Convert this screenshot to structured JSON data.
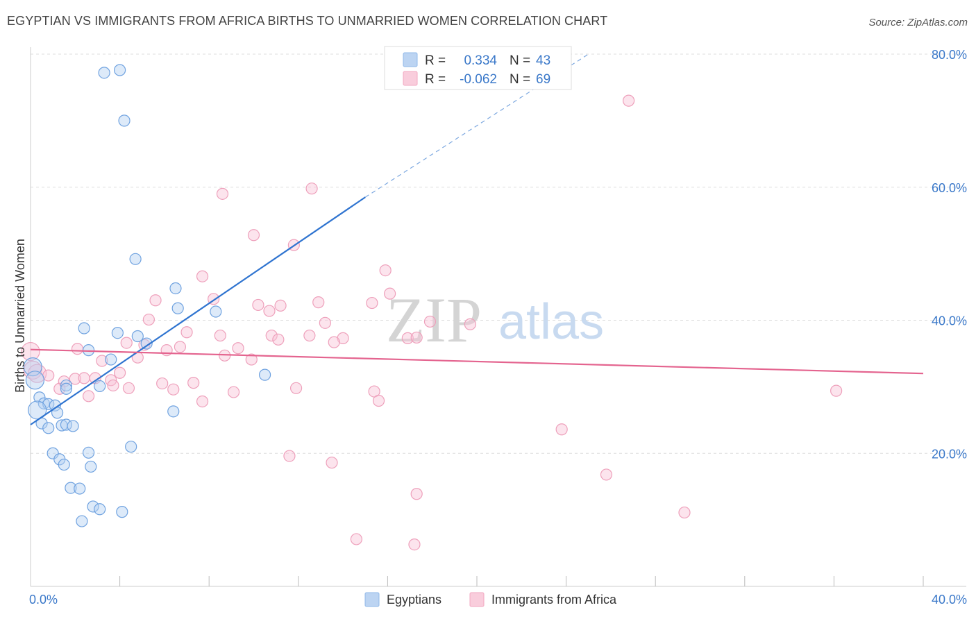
{
  "title": "EGYPTIAN VS IMMIGRANTS FROM AFRICA BIRTHS TO UNMARRIED WOMEN CORRELATION CHART",
  "source": "Source: ZipAtlas.com",
  "watermark": {
    "zip": "ZIP",
    "atlas": "atlas"
  },
  "colors": {
    "blue": "#8fb8e8",
    "blue_line": "#2f74d0",
    "pink": "#f2a7c0",
    "pink_line": "#e4648f"
  },
  "legend_box": {
    "rows": [
      {
        "r_label": "R =",
        "r_value": "0.334",
        "n_label": "N =",
        "n_value": "43"
      },
      {
        "r_label": "R =",
        "r_value": "-0.062",
        "n_label": "N =",
        "n_value": "69"
      }
    ]
  },
  "chart_data": {
    "type": "scatter",
    "title": "EGYPTIAN VS IMMIGRANTS FROM AFRICA BIRTHS TO UNMARRIED WOMEN CORRELATION CHART",
    "xlabel": "",
    "ylabel": "Births to Unmarried Women",
    "xlim": [
      0,
      40
    ],
    "ylim": [
      0,
      80
    ],
    "x_tick_labels": [
      "0.0%",
      "40.0%"
    ],
    "y_ticks": [
      20,
      40,
      60,
      80
    ],
    "y_tick_labels": [
      "20.0%",
      "40.0%",
      "60.0%",
      "80.0%"
    ],
    "legend": [
      "Egyptians",
      "Immigrants from Africa"
    ],
    "series": [
      {
        "name": "Egyptians",
        "r": 0.334,
        "n": 43,
        "trend": {
          "x0": 0,
          "y0": 24.3,
          "x1": 15,
          "y1": 58.5,
          "dash_x1": 25,
          "dash_y1": 80
        },
        "points": [
          [
            3.3,
            77.2
          ],
          [
            4.0,
            77.6
          ],
          [
            4.2,
            70.0
          ],
          [
            4.7,
            49.2
          ],
          [
            6.5,
            44.8
          ],
          [
            6.6,
            41.8
          ],
          [
            8.3,
            41.3
          ],
          [
            2.4,
            38.8
          ],
          [
            3.9,
            38.1
          ],
          [
            4.8,
            37.6
          ],
          [
            5.2,
            36.5
          ],
          [
            2.6,
            35.5
          ],
          [
            3.6,
            34.1
          ],
          [
            0.1,
            33.0
          ],
          [
            0.2,
            31.0
          ],
          [
            1.6,
            30.2
          ],
          [
            3.1,
            30.1
          ],
          [
            1.6,
            29.7
          ],
          [
            10.5,
            31.8
          ],
          [
            0.4,
            28.4
          ],
          [
            0.6,
            27.5
          ],
          [
            0.8,
            27.4
          ],
          [
            1.1,
            27.2
          ],
          [
            0.3,
            26.5
          ],
          [
            1.2,
            26.1
          ],
          [
            6.4,
            26.3
          ],
          [
            0.5,
            24.5
          ],
          [
            1.4,
            24.2
          ],
          [
            1.6,
            24.3
          ],
          [
            1.9,
            24.1
          ],
          [
            0.8,
            23.8
          ],
          [
            4.5,
            21.0
          ],
          [
            1.0,
            20.0
          ],
          [
            2.6,
            20.1
          ],
          [
            1.3,
            19.1
          ],
          [
            1.5,
            18.3
          ],
          [
            2.7,
            18.0
          ],
          [
            1.8,
            14.8
          ],
          [
            2.2,
            14.7
          ],
          [
            2.8,
            12.0
          ],
          [
            3.1,
            11.6
          ],
          [
            4.1,
            11.2
          ],
          [
            2.3,
            9.8
          ]
        ]
      },
      {
        "name": "Immigrants from Africa",
        "r": -0.062,
        "n": 69,
        "trend": {
          "x0": 0,
          "y0": 35.6,
          "x1": 40,
          "y1": 32.0
        },
        "points": [
          [
            26.8,
            73.0
          ],
          [
            12.6,
            59.8
          ],
          [
            8.6,
            59.0
          ],
          [
            10.0,
            52.8
          ],
          [
            11.8,
            51.3
          ],
          [
            15.9,
            47.5
          ],
          [
            7.7,
            46.6
          ],
          [
            5.6,
            43.0
          ],
          [
            8.2,
            43.2
          ],
          [
            10.2,
            42.3
          ],
          [
            11.2,
            42.2
          ],
          [
            16.1,
            44.0
          ],
          [
            12.9,
            42.7
          ],
          [
            15.3,
            42.6
          ],
          [
            10.7,
            41.4
          ],
          [
            5.3,
            40.1
          ],
          [
            13.2,
            39.6
          ],
          [
            17.9,
            39.8
          ],
          [
            19.7,
            39.4
          ],
          [
            7.0,
            38.2
          ],
          [
            8.5,
            37.7
          ],
          [
            10.8,
            37.7
          ],
          [
            12.5,
            37.7
          ],
          [
            11.1,
            37.1
          ],
          [
            14.0,
            37.3
          ],
          [
            16.9,
            37.3
          ],
          [
            17.3,
            37.4
          ],
          [
            4.3,
            36.6
          ],
          [
            5.1,
            36.3
          ],
          [
            13.6,
            36.7
          ],
          [
            6.7,
            36.0
          ],
          [
            9.3,
            35.8
          ],
          [
            2.1,
            35.7
          ],
          [
            6.1,
            35.5
          ],
          [
            0.0,
            35.3
          ],
          [
            8.7,
            34.7
          ],
          [
            4.8,
            34.4
          ],
          [
            9.9,
            34.1
          ],
          [
            3.2,
            33.9
          ],
          [
            0.1,
            32.5
          ],
          [
            0.3,
            32.0
          ],
          [
            0.8,
            31.7
          ],
          [
            4.0,
            32.1
          ],
          [
            2.0,
            31.2
          ],
          [
            2.4,
            31.3
          ],
          [
            2.9,
            31.3
          ],
          [
            3.6,
            31.0
          ],
          [
            1.5,
            30.8
          ],
          [
            7.3,
            30.6
          ],
          [
            5.9,
            30.5
          ],
          [
            11.9,
            29.8
          ],
          [
            6.4,
            29.6
          ],
          [
            1.3,
            29.7
          ],
          [
            4.4,
            29.8
          ],
          [
            3.7,
            30.2
          ],
          [
            9.1,
            29.2
          ],
          [
            7.7,
            27.8
          ],
          [
            15.4,
            29.3
          ],
          [
            15.6,
            27.9
          ],
          [
            36.1,
            29.4
          ],
          [
            2.6,
            28.6
          ],
          [
            23.8,
            23.6
          ],
          [
            11.6,
            19.6
          ],
          [
            13.5,
            18.6
          ],
          [
            25.8,
            16.8
          ],
          [
            17.3,
            13.9
          ],
          [
            29.3,
            11.1
          ],
          [
            14.6,
            7.1
          ],
          [
            17.2,
            6.3
          ]
        ]
      }
    ]
  }
}
